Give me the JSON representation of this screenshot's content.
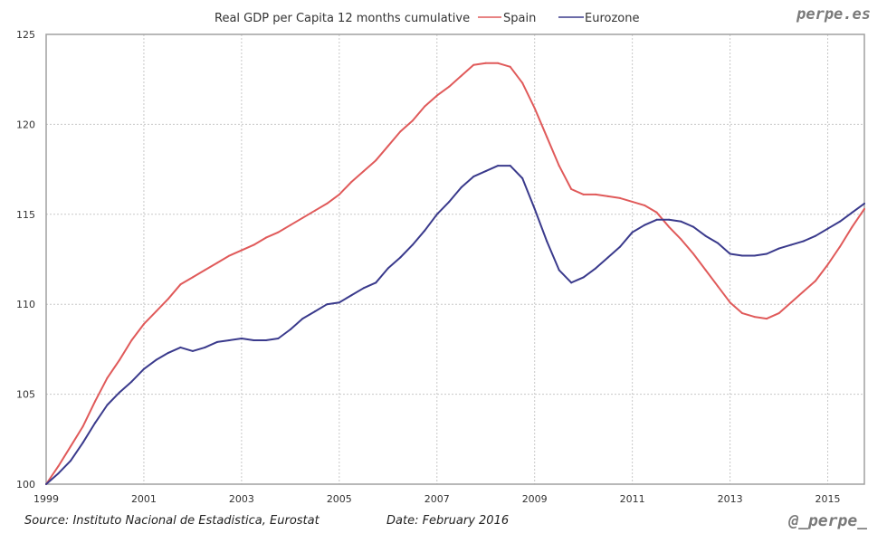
{
  "brand_top": "perpe.es",
  "brand_bottom": "@_perpe_",
  "source": "Source: Instituto Nacional de Estadistica, Eurostat",
  "date": "Date: February 2016",
  "colors": {
    "spain": "#e05a5a",
    "eurozone": "#3a3a8c",
    "grid": "#c8c8c8",
    "axis": "#a0a0a0"
  },
  "chart_data": {
    "type": "line",
    "title": "Real GDP per Capita 12 months cumulative",
    "xlabel": "",
    "ylabel": "",
    "xlim": [
      1999,
      2015.75
    ],
    "ylim": [
      100,
      125
    ],
    "grid": true,
    "legend": "top",
    "x_ticks": [
      "1999",
      "2001",
      "2003",
      "2005",
      "2007",
      "2009",
      "2011",
      "2013",
      "2015"
    ],
    "y_ticks": [
      "100",
      "105",
      "110",
      "115",
      "120",
      "125"
    ],
    "x_start": 1999,
    "x_step": 0.25,
    "series": [
      {
        "name": "Spain",
        "color": "#e05a5a",
        "values": [
          100,
          101.0,
          102.1,
          103.2,
          104.6,
          105.9,
          106.9,
          108.0,
          108.9,
          109.6,
          110.3,
          111.1,
          111.5,
          111.9,
          112.3,
          112.7,
          113.0,
          113.3,
          113.7,
          114.0,
          114.4,
          114.8,
          115.2,
          115.6,
          116.1,
          116.8,
          117.4,
          118.0,
          118.8,
          119.6,
          120.2,
          121.0,
          121.6,
          122.1,
          122.7,
          123.3,
          123.4,
          123.4,
          123.2,
          122.3,
          120.9,
          119.3,
          117.7,
          116.4,
          116.1,
          116.1,
          116.0,
          115.9,
          115.7,
          115.5,
          115.1,
          114.3,
          113.6,
          112.8,
          111.9,
          111.0,
          110.1,
          109.5,
          109.3,
          109.2,
          109.5,
          110.1,
          110.7,
          111.3,
          112.2,
          113.2,
          114.3,
          115.3
        ]
      },
      {
        "name": "Eurozone",
        "color": "#3a3a8c",
        "values": [
          100,
          100.6,
          101.3,
          102.3,
          103.4,
          104.4,
          105.1,
          105.7,
          106.4,
          106.9,
          107.3,
          107.6,
          107.4,
          107.6,
          107.9,
          108.0,
          108.1,
          108.0,
          108.0,
          108.1,
          108.6,
          109.2,
          109.6,
          110.0,
          110.1,
          110.5,
          110.9,
          111.2,
          112.0,
          112.6,
          113.3,
          114.1,
          115.0,
          115.7,
          116.5,
          117.1,
          117.4,
          117.7,
          117.7,
          117.0,
          115.3,
          113.5,
          111.9,
          111.2,
          111.5,
          112.0,
          112.6,
          113.2,
          114.0,
          114.4,
          114.7,
          114.7,
          114.6,
          114.3,
          113.8,
          113.4,
          112.8,
          112.7,
          112.7,
          112.8,
          113.1,
          113.3,
          113.5,
          113.8,
          114.2,
          114.6,
          115.1,
          115.6
        ]
      }
    ]
  }
}
